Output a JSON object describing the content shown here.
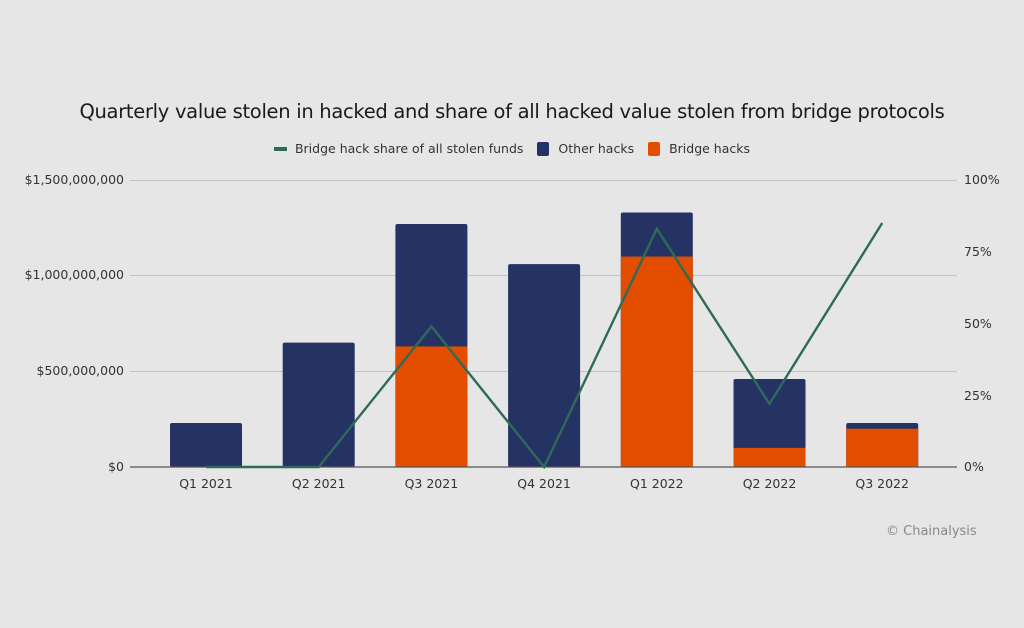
{
  "title": "Quarterly value stolen in hacked and share of all hacked value stolen from bridge protocols",
  "legend": [
    {
      "label": "Bridge hack share of all stolen funds",
      "type": "line",
      "color": "#2e6b57"
    },
    {
      "label": "Other hacks",
      "type": "bar",
      "color": "#253364"
    },
    {
      "label": "Bridge hacks",
      "type": "bar",
      "color": "#e24d00"
    }
  ],
  "left_axis": {
    "ticks": [
      "$1,500,000,000",
      "$1,000,000,000",
      "$500,000,000",
      "$0"
    ]
  },
  "right_axis": {
    "ticks": [
      "100%",
      "75%",
      "50%",
      "25%",
      "0%"
    ]
  },
  "credit": "© Chainalysis",
  "chart_data": {
    "type": "bar",
    "subtype": "stacked bar with line on secondary axis",
    "title": "Quarterly value stolen in hacked and share of all hacked value stolen from bridge protocols",
    "categories": [
      "Q1 2021",
      "Q2 2021",
      "Q3 2021",
      "Q4 2021",
      "Q1 2022",
      "Q2 2022",
      "Q3 2022"
    ],
    "series": [
      {
        "name": "Bridge hacks",
        "type": "bar",
        "axis": "left",
        "color": "#e24d00",
        "values": [
          0,
          0,
          630000000,
          0,
          1100000000,
          100000000,
          200000000
        ]
      },
      {
        "name": "Other hacks",
        "type": "bar",
        "axis": "left",
        "color": "#253364",
        "values": [
          230000000,
          650000000,
          640000000,
          1060000000,
          230000000,
          360000000,
          30000000
        ]
      },
      {
        "name": "Bridge hack share of all stolen funds",
        "type": "line",
        "axis": "right",
        "color": "#2e6b57",
        "values": [
          0,
          0,
          0.49,
          0,
          0.83,
          0.22,
          0.85
        ]
      }
    ],
    "xlabel": "",
    "ylabel": "",
    "ylim": [
      0,
      1500000000
    ],
    "y2lim": [
      0,
      1
    ],
    "left_ticks": [
      "$0",
      "$500,000,000",
      "$1,000,000,000",
      "$1,500,000,000"
    ],
    "right_ticks": [
      "0%",
      "25%",
      "50%",
      "75%",
      "100%"
    ],
    "grid": true,
    "legend_position": "top"
  }
}
